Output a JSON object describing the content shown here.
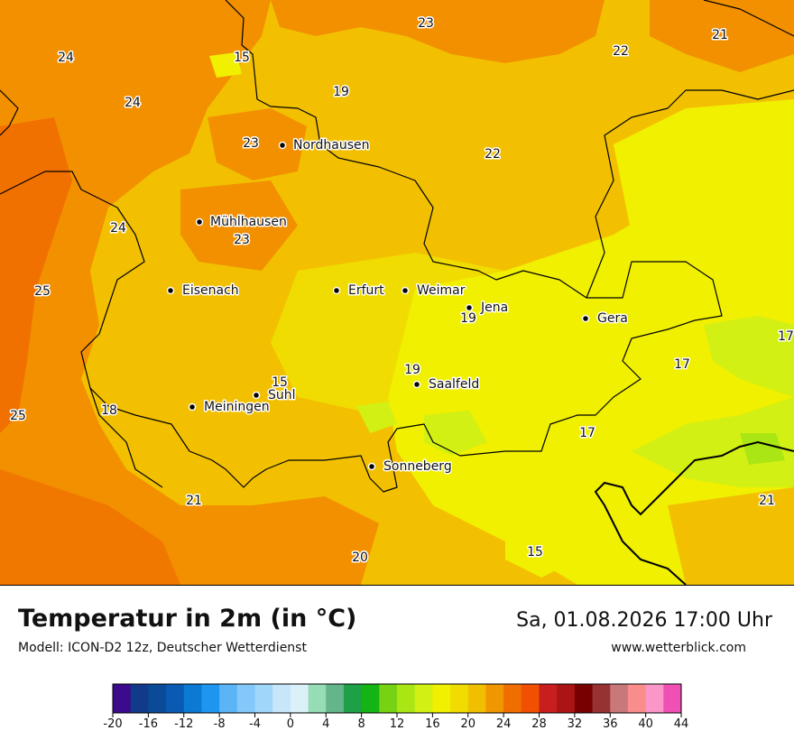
{
  "map": {
    "temperature_labels": [
      "23",
      "22",
      "21",
      "24",
      "15",
      "19",
      "24",
      "23",
      "22",
      "24",
      "23",
      "25",
      "15",
      "19",
      "17",
      "17",
      "25",
      "18",
      "21",
      "20",
      "15",
      "17",
      "21",
      "19"
    ],
    "cities": [
      "Nordhausen",
      "Mühlhausen",
      "Eisenach",
      "Erfurt",
      "Weimar",
      "Jena",
      "Gera",
      "Suhl",
      "Meiningen",
      "Saalfeld",
      "Sonneberg"
    ]
  },
  "footer": {
    "title": "Temperatur in 2m (in °C)",
    "model": "Modell: ICON-D2 12z, Deutscher Wetterdienst",
    "datetime": "Sa, 01.08.2026 17:00 Uhr",
    "website": "www.wetterblick.com"
  },
  "legend": {
    "ticks": [
      "-20",
      "-16",
      "-12",
      "-8",
      "-4",
      "0",
      "4",
      "8",
      "12",
      "16",
      "20",
      "24",
      "28",
      "32",
      "36",
      "40",
      "44"
    ],
    "colors": [
      "#3c0a8c",
      "#123a8a",
      "#0a4a96",
      "#0a5ab4",
      "#0a7ad2",
      "#1e96f0",
      "#5ab4f5",
      "#82c8fa",
      "#a0d6fa",
      "#c8e6fa",
      "#dcf0fa",
      "#96dcb4",
      "#64b48c",
      "#1ea046",
      "#14b414",
      "#78d214",
      "#aae614",
      "#d2f014",
      "#f0f000",
      "#f0dc00",
      "#f0c000",
      "#f09600",
      "#f06e00",
      "#f05000",
      "#c81e1e",
      "#aa1414",
      "#780000",
      "#963232",
      "#c87878",
      "#fa8c8c",
      "#fa96c8",
      "#f050b4"
    ]
  }
}
